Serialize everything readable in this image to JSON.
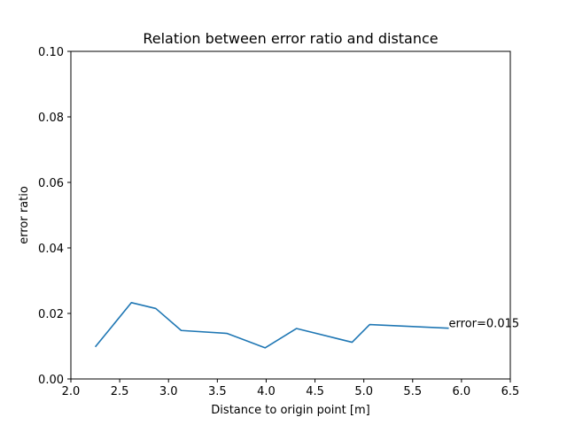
{
  "chart_data": {
    "type": "line",
    "title": "Relation between error ratio and distance",
    "xlabel": "Distance to origin point [m]",
    "ylabel": "error ratio",
    "xlim": [
      2.0,
      6.5
    ],
    "ylim": [
      0.0,
      0.1
    ],
    "x_ticks": [
      "2.0",
      "2.5",
      "3.0",
      "3.5",
      "4.0",
      "4.5",
      "5.0",
      "5.5",
      "6.0",
      "6.5"
    ],
    "y_ticks": [
      "0.00",
      "0.02",
      "0.04",
      "0.06",
      "0.08",
      "0.10"
    ],
    "grid": false,
    "series": [
      {
        "color": "#1f77b4",
        "x": [
          2.25,
          2.62,
          2.87,
          3.13,
          3.6,
          3.99,
          4.31,
          4.88,
          5.06,
          5.87
        ],
        "y": [
          0.0098,
          0.0233,
          0.0215,
          0.0148,
          0.0139,
          0.0095,
          0.0154,
          0.0112,
          0.0166,
          0.0155
        ]
      }
    ],
    "annotations": [
      {
        "text": "error=0.015",
        "x": 5.87,
        "y": 0.0155
      }
    ]
  }
}
